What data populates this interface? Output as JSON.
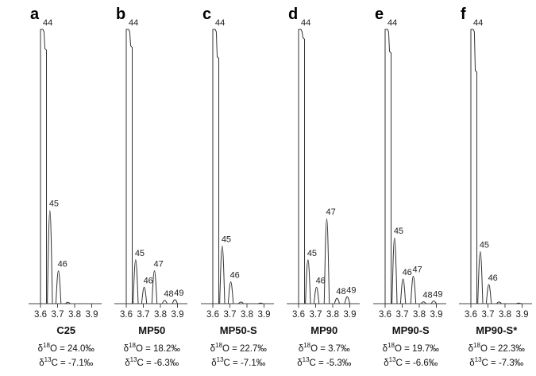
{
  "chart_data": {
    "type": "line",
    "description_axis": "mass-spectrum style peak traces; x axis values",
    "x_ticks": [
      "3.6",
      "3.7",
      "3.8",
      "3.9"
    ],
    "xlim": [
      3.55,
      3.95
    ],
    "ylim": [
      0,
      100
    ],
    "panels": [
      {
        "letter": "a",
        "sample": "C25",
        "d18O_prefix": "δ",
        "d18O_sup": "18",
        "d18O_text": "O = 24.0‰",
        "d13C_prefix": "δ",
        "d13C_sup": "13",
        "d13C_text": "C = -7.1‰",
        "peaks": [
          {
            "label": "44",
            "x": 3.6,
            "height": 100,
            "shoulder": 93,
            "width": 0.035,
            "labeled": true
          },
          {
            "label": "45",
            "x": 3.655,
            "height": 34,
            "labeled": true
          },
          {
            "label": "46",
            "x": 3.705,
            "height": 12,
            "labeled": true
          },
          {
            "label": "",
            "x": 3.76,
            "height": 0.5,
            "labeled": false
          }
        ]
      },
      {
        "letter": "b",
        "sample": "MP50",
        "d18O_prefix": "δ",
        "d18O_sup": "18",
        "d18O_text": "O = 18.2‰",
        "d13C_prefix": "δ",
        "d13C_sup": "13",
        "d13C_text": "C = -6.3‰",
        "peaks": [
          {
            "label": "44",
            "x": 3.6,
            "height": 100,
            "shoulder": 94,
            "width": 0.035,
            "labeled": true
          },
          {
            "label": "45",
            "x": 3.655,
            "height": 16,
            "labeled": true
          },
          {
            "label": "46",
            "x": 3.705,
            "height": 6,
            "labeled": true
          },
          {
            "label": "47",
            "x": 3.765,
            "height": 12,
            "labeled": true
          },
          {
            "label": "48",
            "x": 3.825,
            "height": 1.2,
            "labeled": true
          },
          {
            "label": "49",
            "x": 3.885,
            "height": 1.5,
            "labeled": true
          }
        ]
      },
      {
        "letter": "c",
        "sample": "MP50-S",
        "d18O_prefix": "δ",
        "d18O_sup": "18",
        "d18O_text": "O = 22.7‰",
        "d13C_prefix": "δ",
        "d13C_sup": "13",
        "d13C_text": "C = -7.1‰",
        "peaks": [
          {
            "label": "44",
            "x": 3.6,
            "height": 100,
            "shoulder": 90,
            "width": 0.035,
            "labeled": true
          },
          {
            "label": "45",
            "x": 3.655,
            "height": 21,
            "labeled": true
          },
          {
            "label": "46",
            "x": 3.705,
            "height": 8,
            "labeled": true
          },
          {
            "label": "",
            "x": 3.765,
            "height": 0.6,
            "labeled": false
          },
          {
            "label": "",
            "x": 3.88,
            "height": 0.2,
            "labeled": false
          }
        ]
      },
      {
        "letter": "d",
        "sample": "MP90",
        "d18O_prefix": "δ",
        "d18O_sup": "18",
        "d18O_text": "O = 3.7‰",
        "d13C_prefix": "δ",
        "d13C_sup": "13",
        "d13C_text": "C = -5.3‰",
        "peaks": [
          {
            "label": "44",
            "x": 3.6,
            "height": 100,
            "shoulder": 97,
            "width": 0.035,
            "labeled": true
          },
          {
            "label": "45",
            "x": 3.655,
            "height": 16,
            "labeled": true
          },
          {
            "label": "46",
            "x": 3.705,
            "height": 6,
            "labeled": true
          },
          {
            "label": "47",
            "x": 3.765,
            "height": 31,
            "labeled": true
          },
          {
            "label": "48",
            "x": 3.825,
            "height": 2,
            "labeled": true
          },
          {
            "label": "49",
            "x": 3.885,
            "height": 2.5,
            "labeled": true
          }
        ]
      },
      {
        "letter": "e",
        "sample": "MP90-S",
        "d18O_prefix": "δ",
        "d18O_sup": "18",
        "d18O_text": "O = 19.7‰",
        "d13C_prefix": "δ",
        "d13C_sup": "13",
        "d13C_text": "C = -6.6‰",
        "peaks": [
          {
            "label": "44",
            "x": 3.6,
            "height": 100,
            "shoulder": 92,
            "width": 0.035,
            "labeled": true
          },
          {
            "label": "45",
            "x": 3.655,
            "height": 24,
            "labeled": true
          },
          {
            "label": "46",
            "x": 3.705,
            "height": 9,
            "labeled": true
          },
          {
            "label": "47",
            "x": 3.765,
            "height": 10,
            "labeled": true
          },
          {
            "label": "48",
            "x": 3.825,
            "height": 0.7,
            "labeled": true
          },
          {
            "label": "49",
            "x": 3.885,
            "height": 1,
            "labeled": true
          }
        ]
      },
      {
        "letter": "f",
        "sample": "MP90-S*",
        "d18O_prefix": "δ",
        "d18O_sup": "18",
        "d18O_text": "O = 22.3‰",
        "d13C_prefix": "δ",
        "d13C_sup": "13",
        "d13C_text": "C = -7.3‰",
        "peaks": [
          {
            "label": "44",
            "x": 3.6,
            "height": 100,
            "shoulder": 85,
            "width": 0.035,
            "labeled": true
          },
          {
            "label": "45",
            "x": 3.655,
            "height": 19,
            "labeled": true
          },
          {
            "label": "46",
            "x": 3.705,
            "height": 7,
            "labeled": true
          },
          {
            "label": "",
            "x": 3.765,
            "height": 0.6,
            "labeled": false
          },
          {
            "label": "",
            "x": 3.88,
            "height": 0.2,
            "labeled": false
          }
        ]
      }
    ]
  }
}
